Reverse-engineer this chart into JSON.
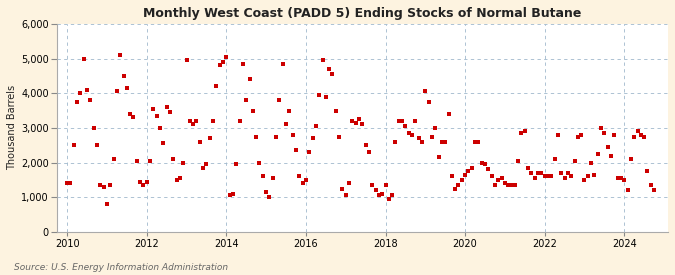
{
  "title": "Monthly West Coast (PADD 5) Ending Stocks of Normal Butane",
  "ylabel": "Thousand Barrels",
  "source": "Source: U.S. Energy Information Administration",
  "background_color": "#fdf3e0",
  "plot_bg_color": "#ffffff",
  "marker_color": "#cc0000",
  "marker": "s",
  "marker_size": 3.5,
  "ylim": [
    0,
    6000
  ],
  "yticks": [
    0,
    1000,
    2000,
    3000,
    4000,
    5000,
    6000
  ],
  "xlim_start": 2009.75,
  "xlim_end": 2025.1,
  "xticks": [
    2010,
    2012,
    2014,
    2016,
    2018,
    2020,
    2022,
    2024
  ],
  "data": [
    [
      2010.0,
      1400
    ],
    [
      2010.083,
      1400
    ],
    [
      2010.167,
      2500
    ],
    [
      2010.25,
      3750
    ],
    [
      2010.333,
      4000
    ],
    [
      2010.417,
      5000
    ],
    [
      2010.5,
      4100
    ],
    [
      2010.583,
      3800
    ],
    [
      2010.667,
      3000
    ],
    [
      2010.75,
      2500
    ],
    [
      2010.833,
      1350
    ],
    [
      2010.917,
      1300
    ],
    [
      2011.0,
      800
    ],
    [
      2011.083,
      1350
    ],
    [
      2011.167,
      2100
    ],
    [
      2011.25,
      4050
    ],
    [
      2011.333,
      5100
    ],
    [
      2011.417,
      4500
    ],
    [
      2011.5,
      4150
    ],
    [
      2011.583,
      3400
    ],
    [
      2011.667,
      3300
    ],
    [
      2011.75,
      2050
    ],
    [
      2011.833,
      1450
    ],
    [
      2011.917,
      1350
    ],
    [
      2012.0,
      1450
    ],
    [
      2012.083,
      2050
    ],
    [
      2012.167,
      3550
    ],
    [
      2012.25,
      3350
    ],
    [
      2012.333,
      3000
    ],
    [
      2012.417,
      2550
    ],
    [
      2012.5,
      3600
    ],
    [
      2012.583,
      3450
    ],
    [
      2012.667,
      2100
    ],
    [
      2012.75,
      1500
    ],
    [
      2012.833,
      1550
    ],
    [
      2012.917,
      2000
    ],
    [
      2013.0,
      4950
    ],
    [
      2013.083,
      3200
    ],
    [
      2013.167,
      3100
    ],
    [
      2013.25,
      3200
    ],
    [
      2013.333,
      2600
    ],
    [
      2013.417,
      1850
    ],
    [
      2013.5,
      1950
    ],
    [
      2013.583,
      2700
    ],
    [
      2013.667,
      3200
    ],
    [
      2013.75,
      4200
    ],
    [
      2013.833,
      4800
    ],
    [
      2013.917,
      4900
    ],
    [
      2014.0,
      5050
    ],
    [
      2014.083,
      1050
    ],
    [
      2014.167,
      1100
    ],
    [
      2014.25,
      1950
    ],
    [
      2014.333,
      3200
    ],
    [
      2014.417,
      4850
    ],
    [
      2014.5,
      3800
    ],
    [
      2014.583,
      4400
    ],
    [
      2014.667,
      3500
    ],
    [
      2014.75,
      2750
    ],
    [
      2014.833,
      2000
    ],
    [
      2014.917,
      1600
    ],
    [
      2015.0,
      1150
    ],
    [
      2015.083,
      1000
    ],
    [
      2015.167,
      1550
    ],
    [
      2015.25,
      2750
    ],
    [
      2015.333,
      3800
    ],
    [
      2015.417,
      4850
    ],
    [
      2015.5,
      3100
    ],
    [
      2015.583,
      3500
    ],
    [
      2015.667,
      2800
    ],
    [
      2015.75,
      2350
    ],
    [
      2015.833,
      1600
    ],
    [
      2015.917,
      1400
    ],
    [
      2016.0,
      1500
    ],
    [
      2016.083,
      2300
    ],
    [
      2016.167,
      2700
    ],
    [
      2016.25,
      3050
    ],
    [
      2016.333,
      3950
    ],
    [
      2016.417,
      4950
    ],
    [
      2016.5,
      3900
    ],
    [
      2016.583,
      4700
    ],
    [
      2016.667,
      4550
    ],
    [
      2016.75,
      3500
    ],
    [
      2016.833,
      2750
    ],
    [
      2016.917,
      1250
    ],
    [
      2017.0,
      1050
    ],
    [
      2017.083,
      1400
    ],
    [
      2017.167,
      3200
    ],
    [
      2017.25,
      3150
    ],
    [
      2017.333,
      3250
    ],
    [
      2017.417,
      3100
    ],
    [
      2017.5,
      2500
    ],
    [
      2017.583,
      2300
    ],
    [
      2017.667,
      1350
    ],
    [
      2017.75,
      1200
    ],
    [
      2017.833,
      1050
    ],
    [
      2017.917,
      1100
    ],
    [
      2018.0,
      1350
    ],
    [
      2018.083,
      950
    ],
    [
      2018.167,
      1050
    ],
    [
      2018.25,
      2600
    ],
    [
      2018.333,
      3200
    ],
    [
      2018.417,
      3200
    ],
    [
      2018.5,
      3050
    ],
    [
      2018.583,
      2850
    ],
    [
      2018.667,
      2800
    ],
    [
      2018.75,
      3200
    ],
    [
      2018.833,
      2700
    ],
    [
      2018.917,
      2600
    ],
    [
      2019.0,
      4050
    ],
    [
      2019.083,
      3750
    ],
    [
      2019.167,
      2750
    ],
    [
      2019.25,
      3000
    ],
    [
      2019.333,
      2150
    ],
    [
      2019.417,
      2600
    ],
    [
      2019.5,
      2600
    ],
    [
      2019.583,
      3400
    ],
    [
      2019.667,
      1600
    ],
    [
      2019.75,
      1250
    ],
    [
      2019.833,
      1350
    ],
    [
      2019.917,
      1500
    ],
    [
      2020.0,
      1650
    ],
    [
      2020.083,
      1750
    ],
    [
      2020.167,
      1850
    ],
    [
      2020.25,
      2600
    ],
    [
      2020.333,
      2600
    ],
    [
      2020.417,
      2000
    ],
    [
      2020.5,
      1950
    ],
    [
      2020.583,
      1800
    ],
    [
      2020.667,
      1600
    ],
    [
      2020.75,
      1350
    ],
    [
      2020.833,
      1500
    ],
    [
      2020.917,
      1550
    ],
    [
      2021.0,
      1400
    ],
    [
      2021.083,
      1350
    ],
    [
      2021.167,
      1350
    ],
    [
      2021.25,
      1350
    ],
    [
      2021.333,
      2050
    ],
    [
      2021.417,
      2850
    ],
    [
      2021.5,
      2900
    ],
    [
      2021.583,
      1850
    ],
    [
      2021.667,
      1700
    ],
    [
      2021.75,
      1550
    ],
    [
      2021.833,
      1700
    ],
    [
      2021.917,
      1700
    ],
    [
      2022.0,
      1600
    ],
    [
      2022.083,
      1600
    ],
    [
      2022.167,
      1600
    ],
    [
      2022.25,
      2100
    ],
    [
      2022.333,
      2800
    ],
    [
      2022.417,
      1700
    ],
    [
      2022.5,
      1550
    ],
    [
      2022.583,
      1700
    ],
    [
      2022.667,
      1600
    ],
    [
      2022.75,
      2050
    ],
    [
      2022.833,
      2750
    ],
    [
      2022.917,
      2800
    ],
    [
      2023.0,
      1500
    ],
    [
      2023.083,
      1600
    ],
    [
      2023.167,
      2000
    ],
    [
      2023.25,
      1650
    ],
    [
      2023.333,
      2250
    ],
    [
      2023.417,
      3000
    ],
    [
      2023.5,
      2850
    ],
    [
      2023.583,
      2450
    ],
    [
      2023.667,
      2200
    ],
    [
      2023.75,
      2800
    ],
    [
      2023.833,
      1550
    ],
    [
      2023.917,
      1550
    ],
    [
      2024.0,
      1500
    ],
    [
      2024.083,
      1200
    ],
    [
      2024.167,
      2100
    ],
    [
      2024.25,
      2750
    ],
    [
      2024.333,
      2900
    ],
    [
      2024.417,
      2800
    ],
    [
      2024.5,
      2750
    ],
    [
      2024.583,
      1750
    ],
    [
      2024.667,
      1350
    ],
    [
      2024.75,
      1200
    ]
  ]
}
